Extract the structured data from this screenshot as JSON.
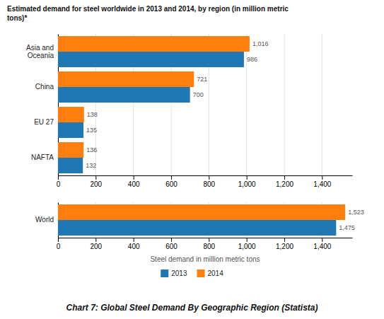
{
  "chart_data": [
    {
      "type": "bar",
      "title": "Estimated demand for steel worldwide in 2013 and 2014, by region (in million metric\ntons)*",
      "orientation": "horizontal",
      "categories": [
        "Asia and\nOceania",
        "China",
        "EU 27",
        "NAFTA"
      ],
      "series": [
        {
          "name": "2013",
          "values": [
            986,
            700,
            135,
            132
          ]
        },
        {
          "name": "2014",
          "values": [
            1016,
            721,
            138,
            136
          ],
          "value_labels": [
            "1,016",
            "721",
            "138",
            "136"
          ]
        }
      ],
      "xlim": [
        0,
        1560
      ],
      "xticks": [
        0,
        200,
        400,
        600,
        800,
        {
          "value": 1000,
          "label": "1,000"
        },
        {
          "value": 1200,
          "label": "1,200"
        },
        {
          "value": 1400,
          "label": "1,400"
        }
      ],
      "grid": true,
      "data_labels": true
    },
    {
      "type": "bar",
      "xlabel": "Steel demand in million metric tons",
      "caption": "Chart 7: Global Steel Demand By Geographic Region (Statista)",
      "orientation": "horizontal",
      "categories": [
        "World"
      ],
      "series": [
        {
          "name": "2013",
          "values": [
            1475
          ],
          "value_labels": [
            "1,475"
          ]
        },
        {
          "name": "2014",
          "values": [
            1523
          ],
          "value_labels": [
            "1,523"
          ]
        }
      ],
      "xlim": [
        0,
        1560
      ],
      "xticks": [
        0,
        200,
        400,
        600,
        800,
        {
          "value": 1000,
          "label": "1,000"
        },
        {
          "value": 1200,
          "label": "1,200"
        },
        {
          "value": 1400,
          "label": "1,400"
        }
      ],
      "grid": true,
      "data_labels": true,
      "legend": "bottom"
    }
  ]
}
